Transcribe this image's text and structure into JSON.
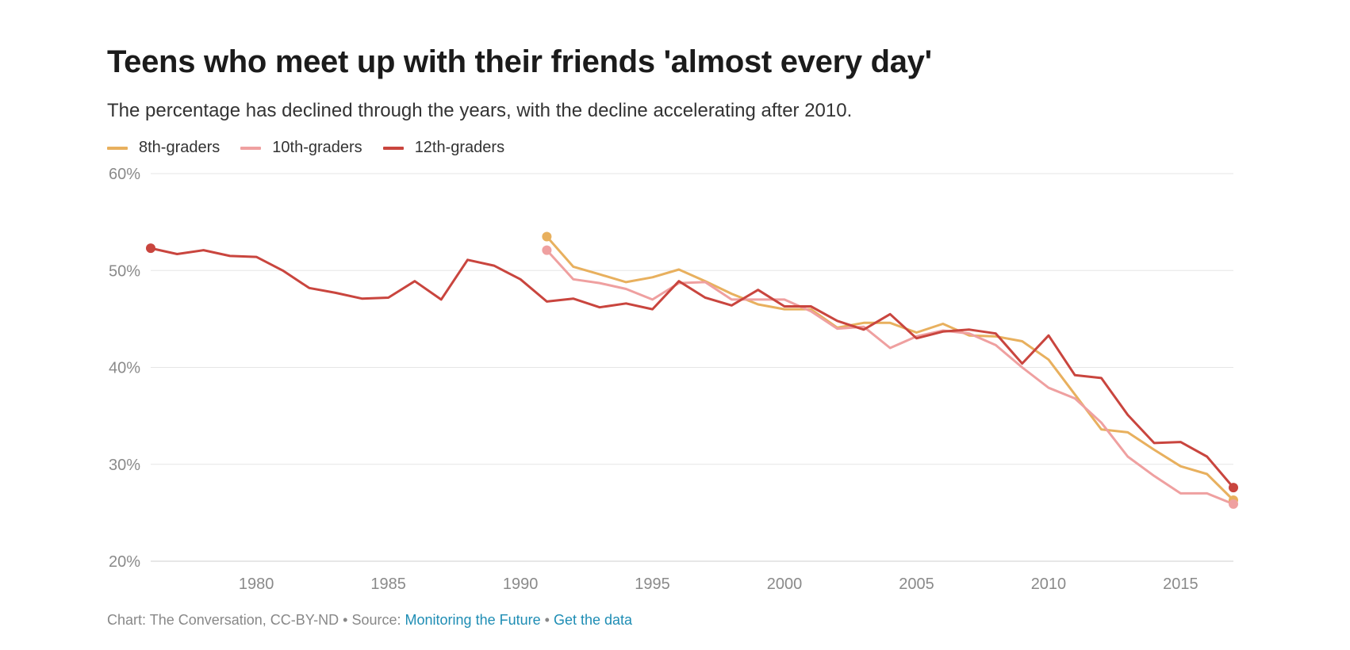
{
  "title": "Teens who meet up with their friends 'almost every day'",
  "subtitle": "The percentage has declined through the years, with the decline accelerating after 2010.",
  "footer": {
    "credit": "Chart: The Conversation, CC-BY-ND",
    "separator": "•",
    "source_label": "Source:",
    "source_link": "Monitoring the Future",
    "data_link": "Get the data"
  },
  "chart_data": {
    "type": "line",
    "title": "Teens who meet up with their friends 'almost every day'",
    "subtitle": "The percentage has declined through the years, with the decline accelerating after 2010.",
    "xlabel": "",
    "ylabel": "",
    "xlim": [
      1976,
      2017
    ],
    "ylim": [
      20,
      60
    ],
    "x_ticks": [
      1980,
      1985,
      1990,
      1995,
      2000,
      2005,
      2010,
      2015
    ],
    "y_ticks": [
      20,
      30,
      40,
      50,
      60
    ],
    "y_tick_labels": [
      "20%",
      "30%",
      "40%",
      "50%",
      "60%"
    ],
    "grid": true,
    "legend_position": "top-left",
    "series": [
      {
        "name": "8th-graders",
        "color": "#E8B05E",
        "x": [
          1991,
          1992,
          1993,
          1994,
          1995,
          1996,
          1997,
          1998,
          1999,
          2000,
          2001,
          2002,
          2003,
          2004,
          2005,
          2006,
          2007,
          2008,
          2009,
          2010,
          2011,
          2012,
          2013,
          2014,
          2015,
          2016,
          2017
        ],
        "values": [
          53.5,
          50.4,
          49.6,
          48.8,
          49.3,
          50.1,
          48.9,
          47.6,
          46.5,
          46.0,
          46.0,
          44.1,
          44.6,
          44.6,
          43.6,
          44.5,
          43.3,
          43.2,
          42.7,
          40.8,
          37.2,
          33.6,
          33.3,
          31.5,
          29.8,
          29.0,
          26.3
        ]
      },
      {
        "name": "10th-graders",
        "color": "#EFA0A0",
        "x": [
          1991,
          1992,
          1993,
          1994,
          1995,
          1996,
          1997,
          1998,
          1999,
          2000,
          2001,
          2002,
          2003,
          2004,
          2005,
          2006,
          2007,
          2008,
          2009,
          2010,
          2011,
          2012,
          2013,
          2014,
          2015,
          2016,
          2017
        ],
        "values": [
          52.1,
          49.1,
          48.7,
          48.1,
          47.0,
          48.7,
          48.8,
          47.0,
          47.0,
          47.0,
          45.8,
          44.0,
          44.2,
          42.0,
          43.2,
          43.8,
          43.5,
          42.3,
          40.0,
          37.9,
          36.8,
          34.3,
          30.8,
          28.8,
          27.0,
          27.0,
          25.9
        ]
      },
      {
        "name": "12th-graders",
        "color": "#C9453E",
        "x": [
          1976,
          1977,
          1978,
          1979,
          1980,
          1981,
          1982,
          1983,
          1984,
          1985,
          1986,
          1987,
          1988,
          1989,
          1990,
          1991,
          1992,
          1993,
          1994,
          1995,
          1996,
          1997,
          1998,
          1999,
          2000,
          2001,
          2002,
          2003,
          2004,
          2005,
          2006,
          2007,
          2008,
          2009,
          2010,
          2011,
          2012,
          2013,
          2014,
          2015,
          2016,
          2017
        ],
        "values": [
          52.3,
          51.7,
          52.1,
          51.5,
          51.4,
          50.0,
          48.2,
          47.7,
          47.1,
          47.2,
          48.9,
          47.0,
          51.1,
          50.5,
          49.1,
          46.8,
          47.1,
          46.2,
          46.6,
          46.0,
          48.9,
          47.2,
          46.4,
          48.0,
          46.3,
          46.3,
          44.8,
          43.9,
          45.5,
          43.0,
          43.7,
          43.9,
          43.5,
          40.4,
          43.3,
          39.2,
          38.9,
          35.1,
          32.2,
          32.3,
          30.8,
          27.6
        ]
      }
    ]
  }
}
